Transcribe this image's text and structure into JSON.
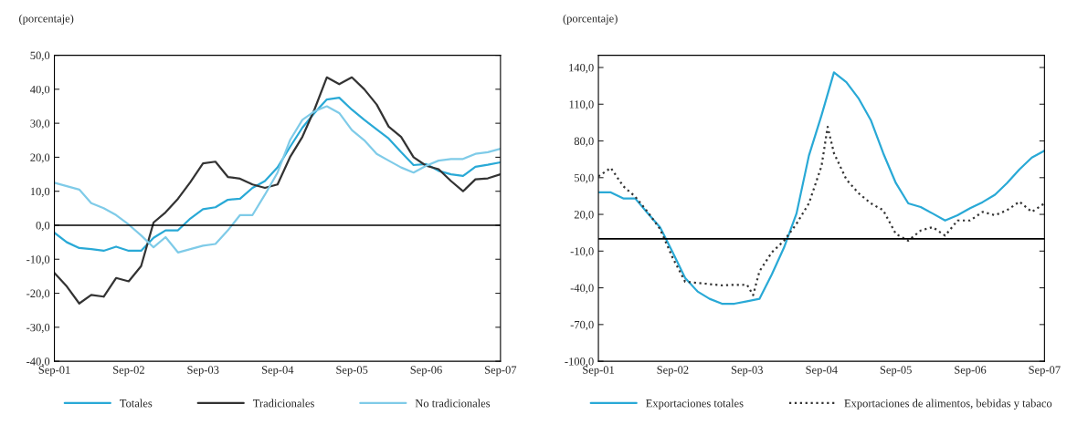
{
  "chart_data": [
    {
      "type": "line",
      "ylabel": "(porcentaje)",
      "ylim": [
        -40,
        50
      ],
      "yticks": [
        {
          "value": -40,
          "label": "-40,0"
        },
        {
          "value": -30,
          "label": "-30,0"
        },
        {
          "value": -20,
          "label": "-20,0"
        },
        {
          "value": -10,
          "label": "-10,0"
        },
        {
          "value": 0,
          "label": "0,0"
        },
        {
          "value": 10,
          "label": "10,0"
        },
        {
          "value": 20,
          "label": "20,0"
        },
        {
          "value": 30,
          "label": "30,0"
        },
        {
          "value": 40,
          "label": "40,0"
        },
        {
          "value": 50,
          "label": "50,0"
        }
      ],
      "xlim": [
        "2001-09",
        "2007-09"
      ],
      "xticks": [
        {
          "value": "2001-09",
          "label": "Sep-01"
        },
        {
          "value": "2002-09",
          "label": "Sep-02"
        },
        {
          "value": "2003-09",
          "label": "Sep-03"
        },
        {
          "value": "2004-09",
          "label": "Sep-04"
        },
        {
          "value": "2005-09",
          "label": "Sep-05"
        },
        {
          "value": "2006-09",
          "label": "Sep-06"
        },
        {
          "value": "2007-09",
          "label": "Sep-07"
        }
      ],
      "x": [
        "2001-09",
        "2001-11",
        "2002-01",
        "2002-03",
        "2002-05",
        "2002-07",
        "2002-09",
        "2002-11",
        "2003-01",
        "2003-03",
        "2003-05",
        "2003-07",
        "2003-09",
        "2003-11",
        "2004-01",
        "2004-03",
        "2004-05",
        "2004-07",
        "2004-09",
        "2004-11",
        "2005-01",
        "2005-03",
        "2005-05",
        "2005-07",
        "2005-09",
        "2005-11",
        "2006-01",
        "2006-03",
        "2006-05",
        "2006-07",
        "2006-09",
        "2006-11",
        "2007-01",
        "2007-03",
        "2007-05",
        "2007-07",
        "2007-09"
      ],
      "series": [
        {
          "name": "Totales",
          "color": "#29a9d6",
          "values": [
            -2.2,
            -5,
            -6.7,
            -7,
            -7.5,
            -6.3,
            -7.5,
            -7.5,
            -3.7,
            -1.5,
            -1.5,
            2,
            4.7,
            5.3,
            7.5,
            7.8,
            11,
            13,
            17,
            23,
            28.7,
            33,
            37,
            37.5,
            34,
            31,
            28.2,
            25.5,
            21.5,
            17.7,
            18,
            16,
            15,
            14.5,
            17.2,
            17.8,
            18.5
          ]
        },
        {
          "name": "Tradicionales",
          "color": "#333333",
          "values": [
            -14,
            -18,
            -23,
            -20.5,
            -21,
            -15.5,
            -16.5,
            -12,
            0.8,
            3.8,
            7.8,
            12.7,
            18.2,
            18.7,
            14.2,
            13.7,
            12,
            11,
            12,
            20,
            26,
            34,
            43.5,
            41.5,
            43.5,
            40,
            35.5,
            29,
            26,
            20,
            17.5,
            16.5,
            13,
            10,
            13.5,
            13.8,
            15
          ]
        },
        {
          "name": "No tradicionales",
          "color": "#7fcbe8",
          "values": [
            12.5,
            11.5,
            10.5,
            6.5,
            5,
            3,
            0.2,
            -3,
            -6.5,
            -3.5,
            -8,
            -7,
            -6,
            -5.5,
            -1.5,
            3,
            3,
            9,
            15.5,
            25,
            31,
            33.5,
            35,
            33,
            28,
            25,
            21,
            19,
            17,
            15.5,
            17.5,
            19,
            19.5,
            19.5,
            21,
            21.5,
            22.5
          ]
        }
      ],
      "ref_lines": [
        {
          "axis": "y",
          "value": 0,
          "color": "#000000"
        }
      ],
      "grid": false,
      "legend": "bottom",
      "line_style": "solid"
    },
    {
      "type": "line",
      "ylabel": "(porcentaje)",
      "ylim": [
        -100,
        150
      ],
      "yticks": [
        {
          "value": -100,
          "label": "-100,0"
        },
        {
          "value": -70,
          "label": "-70,0"
        },
        {
          "value": -40,
          "label": "-40,0"
        },
        {
          "value": -10,
          "label": "-10,0"
        },
        {
          "value": 20,
          "label": "20,0"
        },
        {
          "value": 50,
          "label": "50,0"
        },
        {
          "value": 80,
          "label": "80,0"
        },
        {
          "value": 110,
          "label": "110,0"
        },
        {
          "value": 140,
          "label": "140,0"
        }
      ],
      "xlim": [
        "2001-09",
        "2007-09"
      ],
      "xticks": [
        {
          "value": "2001-09",
          "label": "Sep-01"
        },
        {
          "value": "2002-09",
          "label": "Sep-02"
        },
        {
          "value": "2003-09",
          "label": "Sep-03"
        },
        {
          "value": "2004-09",
          "label": "Sep-04"
        },
        {
          "value": "2005-09",
          "label": "Sep-05"
        },
        {
          "value": "2006-09",
          "label": "Sep-06"
        },
        {
          "value": "2007-09",
          "label": "Sep-07"
        }
      ],
      "series": [
        {
          "name": "Exportaciones totales",
          "color": "#29a9d6",
          "line_style": "solid",
          "x": [
            "2001-09",
            "2001-11",
            "2002-01",
            "2002-03",
            "2002-05",
            "2002-07",
            "2002-09",
            "2002-11",
            "2003-01",
            "2003-03",
            "2003-05",
            "2003-07",
            "2003-09",
            "2003-11",
            "2004-01",
            "2004-03",
            "2004-05",
            "2004-07",
            "2004-09",
            "2004-11",
            "2005-01",
            "2005-03",
            "2005-05",
            "2005-07",
            "2005-09",
            "2005-11",
            "2006-01",
            "2006-03",
            "2006-05",
            "2006-07",
            "2006-09",
            "2006-11",
            "2007-01",
            "2007-03",
            "2007-05",
            "2007-07",
            "2007-09"
          ],
          "values": [
            38,
            38,
            33,
            33,
            21,
            9.5,
            -11,
            -32,
            -43,
            -49,
            -53,
            -53,
            -51,
            -49,
            -29,
            -7,
            20.7,
            68,
            101,
            136,
            128,
            115,
            97,
            70,
            45.6,
            29,
            26,
            20.7,
            15,
            19.3,
            25,
            30,
            36,
            45.6,
            56.7,
            66.4,
            72
          ]
        },
        {
          "name": "Exportaciones de alimentos, bebidas y tabaco",
          "color": "#333333",
          "line_style": "dotted",
          "x": [
            "2001-09",
            "2001-11",
            "2002-01",
            "2002-03",
            "2002-05",
            "2002-07",
            "2002-09",
            "2002-11",
            "2003-01",
            "2003-03",
            "2003-05",
            "2003-07",
            "2003-09",
            "2003-10",
            "2003-11",
            "2004-01",
            "2004-03",
            "2004-05",
            "2004-07",
            "2004-09",
            "2004-10",
            "2004-11",
            "2005-01",
            "2005-03",
            "2005-05",
            "2005-07",
            "2005-09",
            "2005-11",
            "2006-01",
            "2006-03",
            "2006-05",
            "2006-07",
            "2006-09",
            "2006-11",
            "2007-01",
            "2007-03",
            "2007-05",
            "2007-07",
            "2007-09"
          ],
          "values": [
            51,
            58,
            43,
            34.5,
            22,
            8,
            -15.5,
            -35,
            -36,
            -37,
            -38,
            -37.6,
            -37.5,
            -46,
            -26.5,
            -11,
            -1.5,
            12.3,
            29,
            59.5,
            91.5,
            70,
            48.5,
            37.4,
            29,
            23.4,
            4,
            -1.5,
            6.8,
            9.6,
            2.6,
            15,
            15,
            22,
            19.3,
            23.4,
            30.4,
            22,
            29
          ]
        }
      ],
      "ref_lines": [
        {
          "axis": "y",
          "value": 0,
          "color": "#000000"
        }
      ],
      "grid": false,
      "legend": "bottom"
    }
  ]
}
